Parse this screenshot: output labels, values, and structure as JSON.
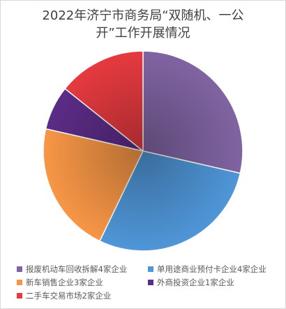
{
  "chart_data": {
    "type": "pie",
    "title_line1": "2022年济宁市商务局“双随机、一公",
    "title_line2": "开”工作开展情况",
    "slices": [
      {
        "name": "报废机动车回收拆解4家企业",
        "value": 4,
        "color": "#8064a2"
      },
      {
        "name": "单用途商业预付卡企业4家企业",
        "value": 4,
        "color": "#4f96d8"
      },
      {
        "name": "新车销售企业3家企业",
        "value": 3,
        "color": "#f79646"
      },
      {
        "name": "外商投资企业1家企业",
        "value": 1,
        "color": "#5b2c86"
      },
      {
        "name": "二手车交易市场2家企业",
        "value": 2,
        "color": "#e53a3f"
      }
    ],
    "legend_position": "bottom"
  }
}
